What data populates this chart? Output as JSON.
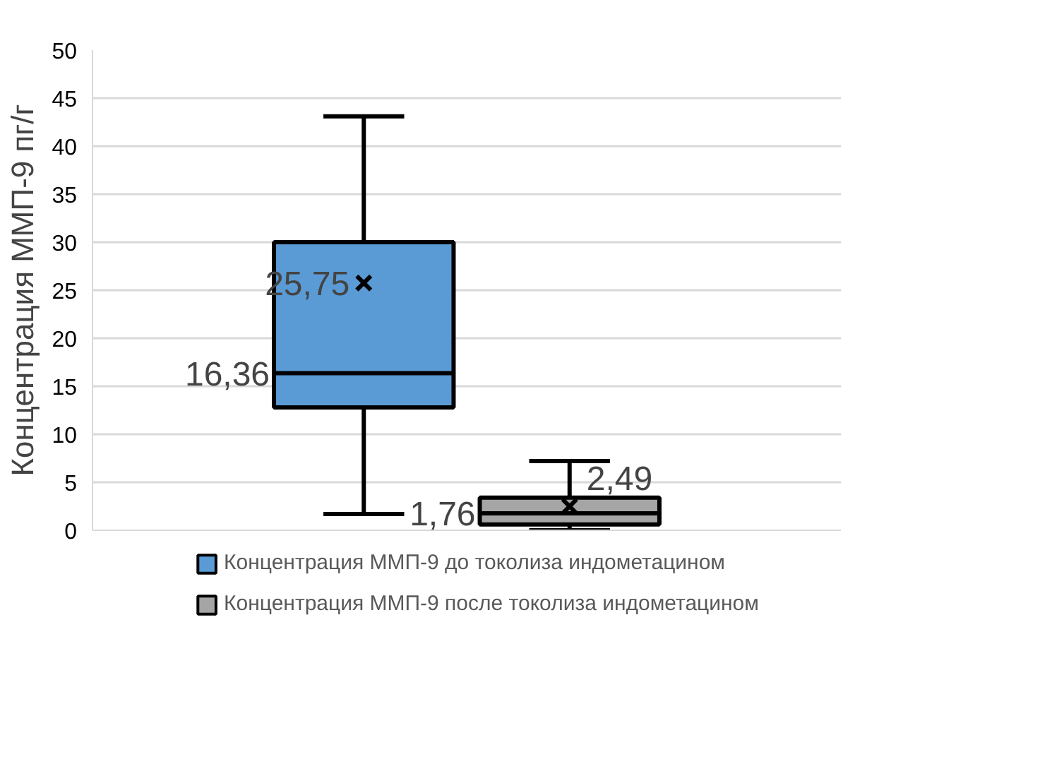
{
  "chart_data": {
    "type": "box",
    "ylabel": "Концентрация ММП-9 пг/г",
    "categories": [
      null
    ],
    "series": [
      {
        "name": "Концентрация ММП-9 до токолиза индометацином",
        "color": "#5b9bd5",
        "boxes": [
          {
            "low": 1.7,
            "q1": 12.8,
            "median": 16.36,
            "q3": 30.0,
            "high": 43.1,
            "mean": 25.75
          }
        ]
      },
      {
        "name": "Концентрация ММП-9 после токолиза индометацином",
        "color": "#a5a5a5",
        "boxes": [
          {
            "low": 0.0,
            "q1": 0.6,
            "median": 1.76,
            "q3": 3.4,
            "high": 7.2,
            "mean": 2.49
          }
        ]
      }
    ],
    "ylim": [
      0,
      50
    ],
    "yticks": [
      0,
      5,
      10,
      15,
      20,
      25,
      30,
      35,
      40,
      45,
      50
    ],
    "annotations": [
      "16,36",
      "25,75",
      "1,76",
      "2,49"
    ],
    "grid": "y",
    "legend": "bottom",
    "tick_labels": "y"
  }
}
